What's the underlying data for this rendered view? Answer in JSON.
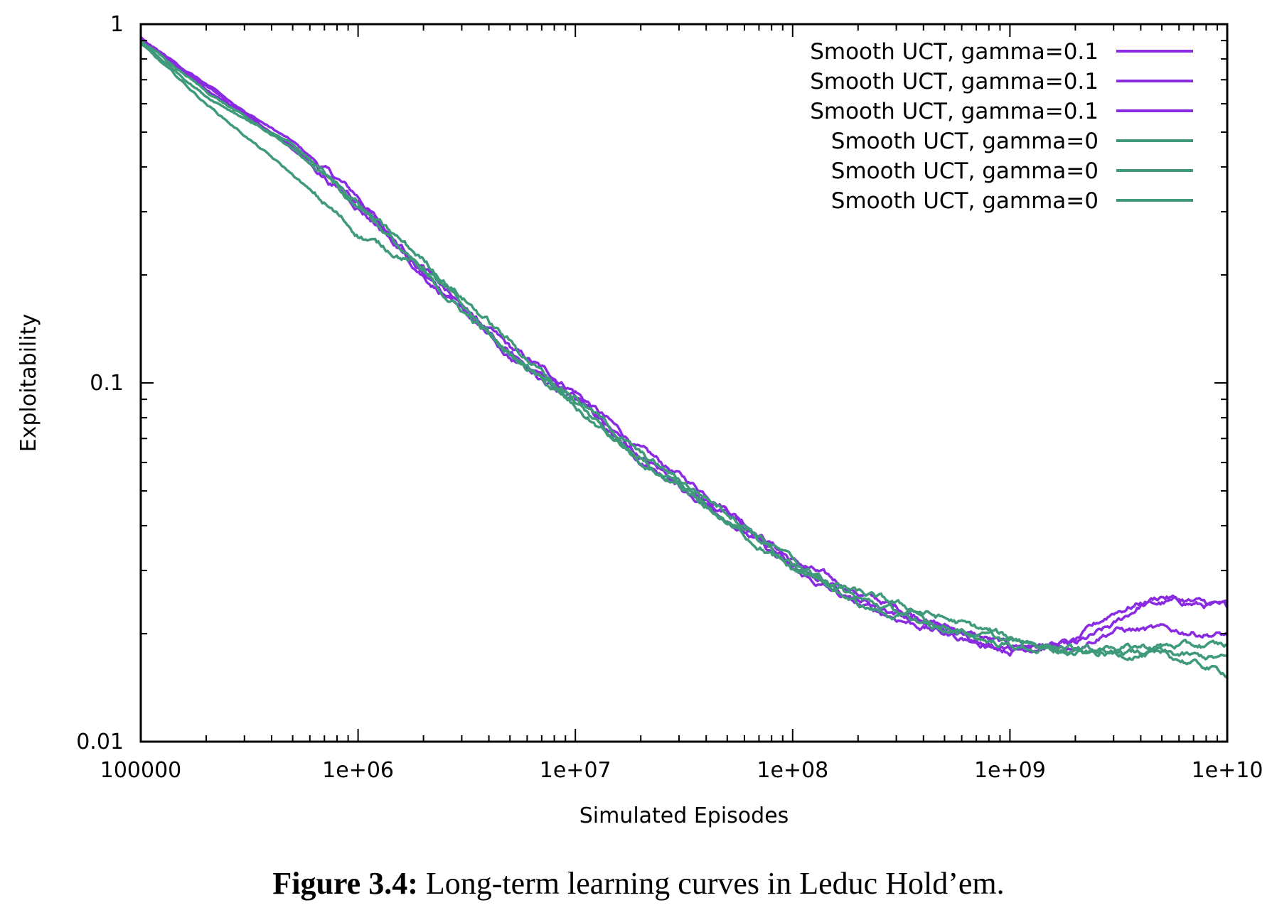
{
  "caption": {
    "label": "Figure 3.4:",
    "text": " Long-term learning curves in Leduc Hold’em."
  },
  "chart_data": {
    "type": "line",
    "xlabel": "Simulated Episodes",
    "ylabel": "Exploitability",
    "x_scale": "log",
    "y_scale": "log",
    "xlim": [
      100000,
      10000000000
    ],
    "ylim": [
      0.01,
      1
    ],
    "x_ticks": [
      100000,
      1000000,
      10000000,
      100000000,
      1000000000,
      10000000000
    ],
    "x_tick_labels": [
      "100000",
      "1e+06",
      "1e+07",
      "1e+08",
      "1e+09",
      "1e+10"
    ],
    "y_ticks": [
      0.01,
      0.1,
      1
    ],
    "y_tick_labels": [
      "0.01",
      "0.1",
      "1"
    ],
    "grid": false,
    "legend_position": "top-right",
    "colors": {
      "gamma01": "#8a2be2",
      "gamma0": "#3e9a78"
    },
    "series": [
      {
        "name": "Smooth UCT, gamma=0.1",
        "color": "#8a2be2",
        "x": [
          100000,
          200000,
          500000,
          1000000,
          2000000,
          5000000,
          10000000,
          20000000,
          50000000,
          100000000,
          200000000,
          500000000,
          1000000000,
          2000000000,
          3000000000,
          4000000000,
          6000000000,
          10000000000
        ],
        "y": [
          0.9,
          0.67,
          0.47,
          0.33,
          0.2,
          0.125,
          0.095,
          0.065,
          0.045,
          0.032,
          0.026,
          0.021,
          0.0185,
          0.0185,
          0.021,
          0.024,
          0.0245,
          0.0235
        ]
      },
      {
        "name": "Smooth UCT, gamma=0.1",
        "color": "#8a2be2",
        "x": [
          100000,
          200000,
          500000,
          1000000,
          2000000,
          5000000,
          10000000,
          20000000,
          50000000,
          100000000,
          200000000,
          500000000,
          1000000000,
          2000000000,
          3000000000,
          5000000000,
          7000000000,
          10000000000
        ],
        "y": [
          0.92,
          0.66,
          0.46,
          0.32,
          0.2,
          0.12,
          0.092,
          0.062,
          0.043,
          0.031,
          0.025,
          0.0205,
          0.018,
          0.019,
          0.023,
          0.0255,
          0.0245,
          0.024
        ]
      },
      {
        "name": "Smooth UCT, gamma=0.1",
        "color": "#8a2be2",
        "x": [
          100000,
          200000,
          500000,
          1000000,
          2000000,
          5000000,
          10000000,
          20000000,
          50000000,
          100000000,
          200000000,
          500000000,
          1000000000,
          2000000000,
          3000000000,
          5000000000,
          10000000000
        ],
        "y": [
          0.91,
          0.68,
          0.45,
          0.31,
          0.21,
          0.118,
          0.09,
          0.06,
          0.042,
          0.03,
          0.024,
          0.02,
          0.018,
          0.0185,
          0.0205,
          0.0205,
          0.0198
        ]
      },
      {
        "name": "Smooth UCT, gamma=0",
        "color": "#3e9a78",
        "x": [
          100000,
          200000,
          500000,
          1000000,
          2000000,
          5000000,
          10000000,
          20000000,
          50000000,
          100000000,
          200000000,
          500000000,
          1000000000,
          2000000000,
          5000000000,
          10000000000
        ],
        "y": [
          0.88,
          0.6,
          0.38,
          0.26,
          0.21,
          0.12,
          0.085,
          0.06,
          0.041,
          0.03,
          0.026,
          0.022,
          0.0195,
          0.018,
          0.0175,
          0.017
        ]
      },
      {
        "name": "Smooth UCT, gamma=0",
        "color": "#3e9a78",
        "x": [
          100000,
          200000,
          500000,
          1000000,
          2000000,
          5000000,
          10000000,
          20000000,
          50000000,
          100000000,
          200000000,
          500000000,
          1000000000,
          2000000000,
          5000000000,
          10000000000
        ],
        "y": [
          0.89,
          0.63,
          0.46,
          0.32,
          0.2,
          0.12,
          0.092,
          0.063,
          0.044,
          0.032,
          0.024,
          0.0205,
          0.0185,
          0.0175,
          0.0175,
          0.0155
        ]
      },
      {
        "name": "Smooth UCT, gamma=0",
        "color": "#3e9a78",
        "x": [
          100000,
          200000,
          500000,
          1000000,
          2000000,
          5000000,
          10000000,
          20000000,
          50000000,
          100000000,
          200000000,
          500000000,
          1000000000,
          2000000000,
          5000000000,
          10000000000
        ],
        "y": [
          0.9,
          0.65,
          0.45,
          0.31,
          0.22,
          0.13,
          0.088,
          0.061,
          0.042,
          0.031,
          0.025,
          0.021,
          0.019,
          0.018,
          0.0185,
          0.0185
        ]
      }
    ]
  }
}
